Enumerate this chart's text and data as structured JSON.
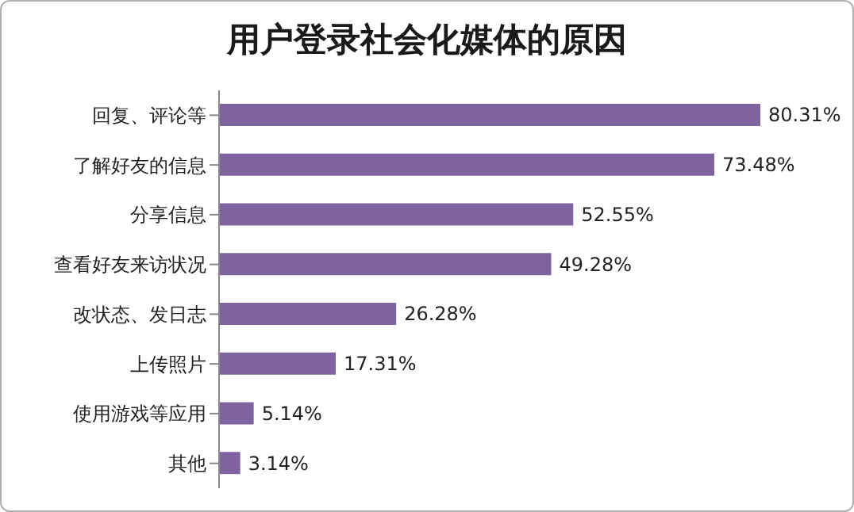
{
  "chart_data": {
    "type": "bar",
    "orientation": "horizontal",
    "title": "用户登录社会化媒体的原因",
    "categories": [
      "回复、评论等",
      "了解好友的信息",
      "分享信息",
      "查看好友来访状况",
      "改状态、发日志",
      "上传照片",
      "使用游戏等应用",
      "其他"
    ],
    "values": [
      80.31,
      73.48,
      52.55,
      49.28,
      26.28,
      17.31,
      5.14,
      3.14
    ],
    "value_labels": [
      "80.31%",
      "73.48%",
      "52.55%",
      "49.28%",
      "26.28%",
      "17.31%",
      "5.14%",
      "3.14%"
    ],
    "color": "#7f63a1",
    "grid": false,
    "legend": false
  }
}
